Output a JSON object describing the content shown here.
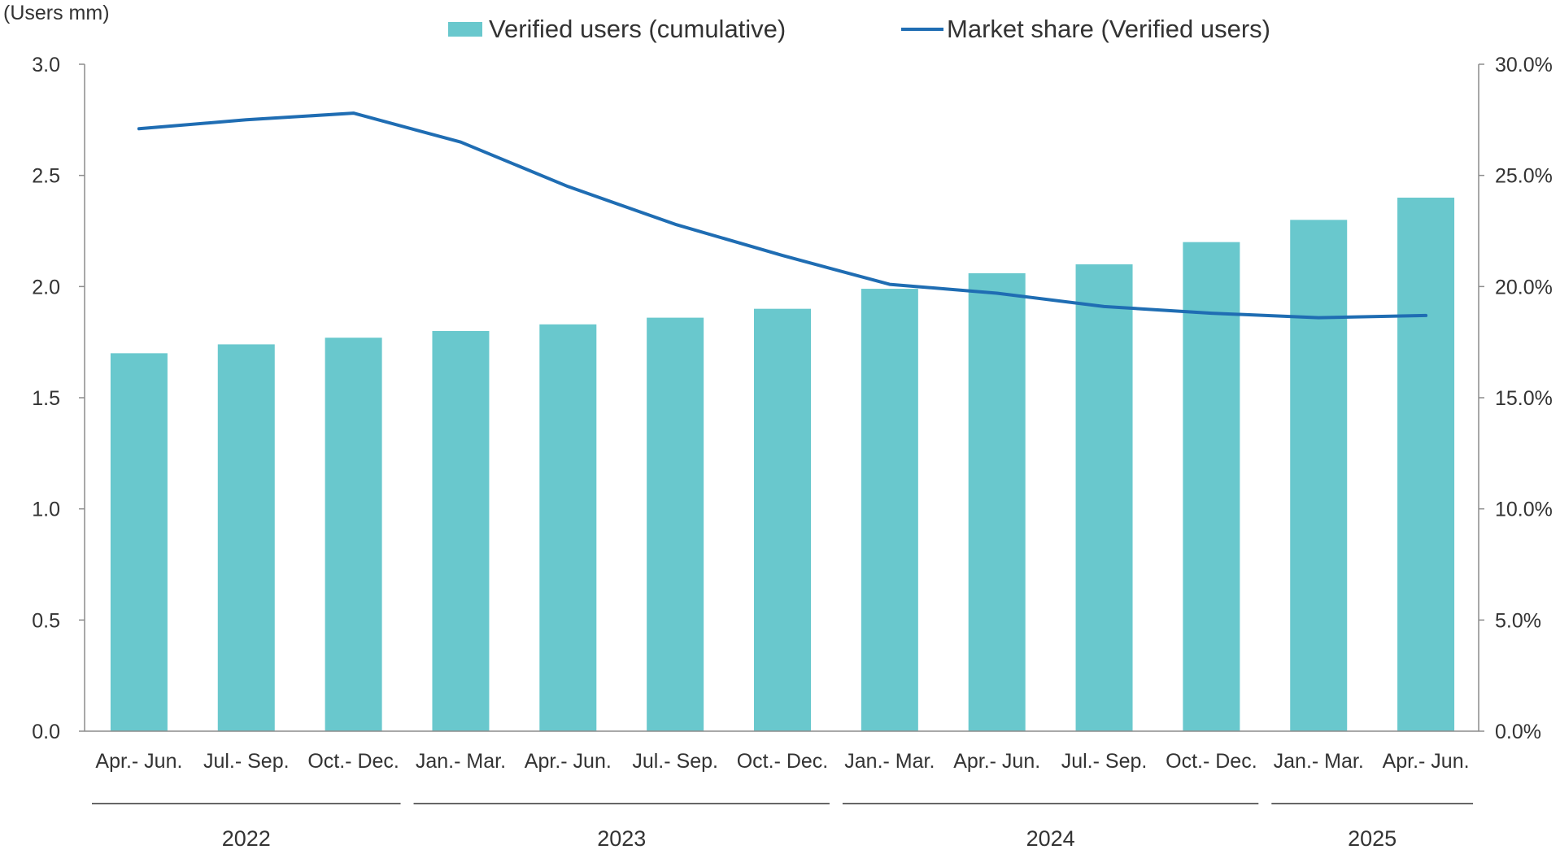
{
  "colors": {
    "bar": "#69c8cd",
    "line": "#1f6db3",
    "axis": "#8c8c8c",
    "text": "#333333"
  },
  "legend": {
    "bar_label": "Verified users (cumulative)",
    "line_label": "Market share (Verified users)"
  },
  "chart_data": {
    "type": "bar",
    "y_unit_label": "(Users mm)",
    "categories": [
      "Apr.- Jun.",
      "Jul.- Sep.",
      "Oct.- Dec.",
      "Jan.- Mar.",
      "Apr.- Jun.",
      "Jul.- Sep.",
      "Oct.- Dec.",
      "Jan.- Mar.",
      "Apr.- Jun.",
      "Jul.- Sep.",
      "Oct.- Dec.",
      "Jan.- Mar.",
      "Apr.- Jun."
    ],
    "year_groups": [
      {
        "label": "2022",
        "start": 0,
        "end": 2
      },
      {
        "label": "2023",
        "start": 3,
        "end": 6
      },
      {
        "label": "2024",
        "start": 7,
        "end": 10
      },
      {
        "label": "2025",
        "start": 11,
        "end": 12
      }
    ],
    "series": [
      {
        "name": "Verified users (cumulative)",
        "type": "bar",
        "axis": "left",
        "values": [
          1.7,
          1.74,
          1.77,
          1.8,
          1.83,
          1.86,
          1.9,
          1.99,
          2.06,
          2.1,
          2.2,
          2.3,
          2.4
        ]
      },
      {
        "name": "Market share (Verified users)",
        "type": "line",
        "axis": "right",
        "values": [
          27.1,
          27.5,
          27.8,
          26.5,
          24.5,
          22.8,
          21.4,
          20.1,
          19.7,
          19.1,
          18.8,
          18.6,
          18.7
        ]
      }
    ],
    "ylim_left": [
      0,
      3.0
    ],
    "yticks_left": [
      "0.0",
      "0.5",
      "1.0",
      "1.5",
      "2.0",
      "2.5",
      "3.0"
    ],
    "ylim_right": [
      0,
      30
    ],
    "yticks_right": [
      "0.0%",
      "5.0%",
      "10.0%",
      "15.0%",
      "20.0%",
      "25.0%",
      "30.0%"
    ],
    "grid": false,
    "legend_position": "top-center"
  }
}
